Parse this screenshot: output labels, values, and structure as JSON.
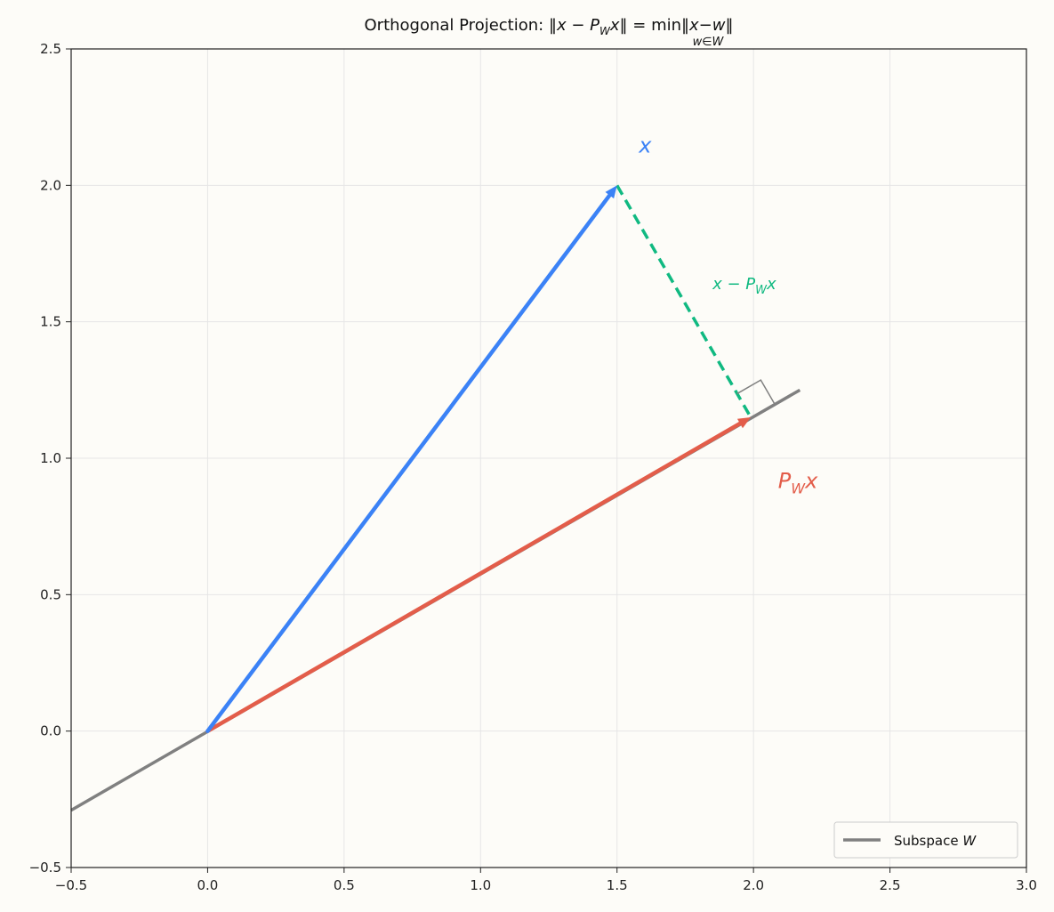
{
  "chart_data": {
    "type": "line",
    "title": "Orthogonal Projection: ‖x − P_W x‖ = min_{w∈W} ‖x−w‖",
    "title_parts": {
      "prefix": "Orthogonal Projection: ",
      "lhs": "‖x − P",
      "lhs_sub": "W",
      "lhs_end": "x‖ = ",
      "min_word": "min",
      "min_sub": "w∈W",
      "rhs": "‖x−w‖"
    },
    "xlim": [
      -0.5,
      3.0
    ],
    "ylim": [
      -0.5,
      2.5
    ],
    "xticks": [
      -0.5,
      0.0,
      0.5,
      1.0,
      1.5,
      2.0,
      2.5,
      3.0
    ],
    "yticks": [
      -0.5,
      0.0,
      0.5,
      1.0,
      1.5,
      2.0,
      2.5
    ],
    "xtick_labels": [
      "−0.5",
      "0.0",
      "0.5",
      "1.0",
      "1.5",
      "2.0",
      "2.5",
      "3.0"
    ],
    "ytick_labels": [
      "−0.5",
      "0.0",
      "0.5",
      "1.0",
      "1.5",
      "2.0",
      "2.5"
    ],
    "grid": true,
    "legend_position": "bottom-right",
    "subspace": {
      "name": "Subspace",
      "name_italic": "W",
      "from": [
        -0.5,
        -0.29
      ],
      "to": [
        2.17,
        1.25
      ],
      "color": "#808080"
    },
    "vector_x": {
      "label": "x",
      "from": [
        0,
        0
      ],
      "to": [
        1.5,
        2.0
      ],
      "color": "#3b82f6",
      "label_at": [
        1.58,
        2.12
      ]
    },
    "projection": {
      "label": "P",
      "label_sub": "W",
      "label_end": "x",
      "from": [
        0,
        0
      ],
      "to": [
        1.99,
        1.15
      ],
      "color": "#e35d4a",
      "label_at": [
        2.09,
        0.89
      ]
    },
    "residual": {
      "label": "x − P",
      "label_sub": "W",
      "label_end": "x",
      "from": [
        1.5,
        2.0
      ],
      "to": [
        1.99,
        1.15
      ],
      "color": "#10b981",
      "label_at": [
        1.85,
        1.62
      ]
    },
    "right_angle_marker": {
      "size": 0.1,
      "color": "#808080"
    }
  }
}
